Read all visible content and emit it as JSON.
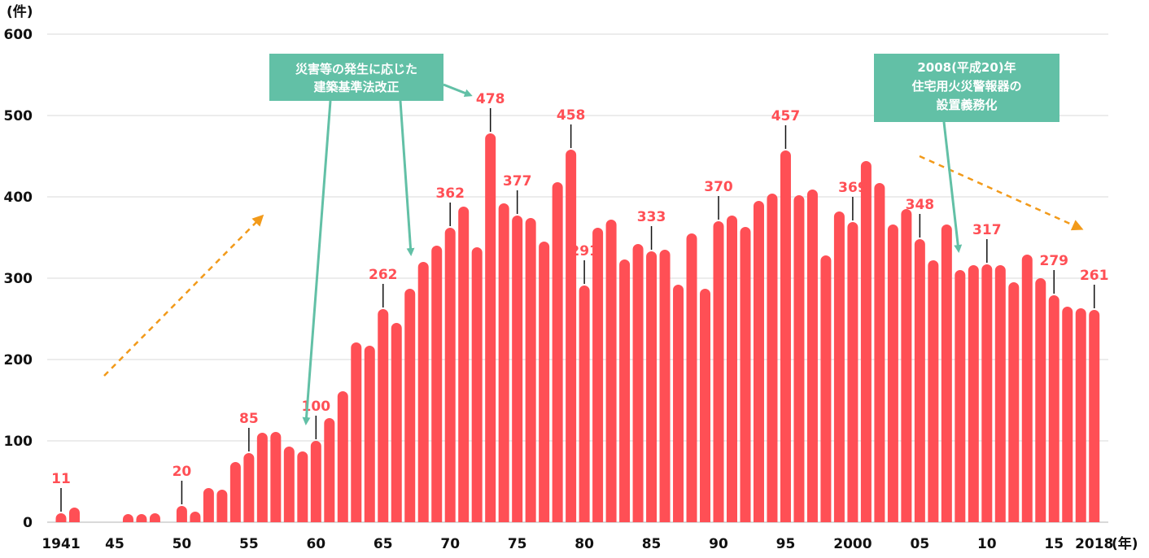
{
  "chart_data": {
    "type": "bar",
    "title": "",
    "ylabel": "(件)",
    "xlabel": "(年)",
    "ylim": [
      0,
      600
    ],
    "yticks": [
      0,
      100,
      200,
      300,
      400,
      500,
      600
    ],
    "ytick_labels": [
      "0",
      "100",
      "200",
      "300",
      "400",
      "500",
      "600"
    ],
    "grid": true,
    "x": [
      1941,
      1942,
      1943,
      1944,
      1945,
      1946,
      1947,
      1948,
      1949,
      1950,
      1951,
      1952,
      1953,
      1954,
      1955,
      1956,
      1957,
      1958,
      1959,
      1960,
      1961,
      1962,
      1963,
      1964,
      1965,
      1966,
      1967,
      1968,
      1969,
      1970,
      1971,
      1972,
      1973,
      1974,
      1975,
      1976,
      1977,
      1978,
      1979,
      1980,
      1981,
      1982,
      1983,
      1984,
      1985,
      1986,
      1987,
      1988,
      1989,
      1990,
      1991,
      1992,
      1993,
      1994,
      1995,
      1996,
      1997,
      1998,
      1999,
      2000,
      2001,
      2002,
      2003,
      2004,
      2005,
      2006,
      2007,
      2008,
      2009,
      2010,
      2011,
      2012,
      2013,
      2014,
      2015,
      2016,
      2017,
      2018
    ],
    "values": [
      11,
      18,
      0,
      0,
      0,
      10,
      10,
      11,
      0,
      20,
      13,
      42,
      40,
      74,
      85,
      110,
      111,
      93,
      87,
      100,
      128,
      161,
      221,
      217,
      262,
      245,
      287,
      320,
      340,
      362,
      388,
      338,
      478,
      392,
      377,
      374,
      345,
      418,
      458,
      291,
      362,
      372,
      323,
      342,
      333,
      335,
      292,
      355,
      287,
      370,
      377,
      363,
      395,
      404,
      457,
      402,
      409,
      328,
      382,
      369,
      444,
      417,
      366,
      385,
      348,
      322,
      366,
      310,
      316,
      317,
      316,
      295,
      329,
      300,
      279,
      265,
      263,
      261
    ],
    "xticks": [
      {
        "year": 1941,
        "label": "1941"
      },
      {
        "year": 1945,
        "label": "45"
      },
      {
        "year": 1950,
        "label": "50"
      },
      {
        "year": 1955,
        "label": "55"
      },
      {
        "year": 1960,
        "label": "60"
      },
      {
        "year": 1965,
        "label": "65"
      },
      {
        "year": 1970,
        "label": "70"
      },
      {
        "year": 1975,
        "label": "75"
      },
      {
        "year": 1980,
        "label": "80"
      },
      {
        "year": 1985,
        "label": "85"
      },
      {
        "year": 1990,
        "label": "90"
      },
      {
        "year": 1995,
        "label": "95"
      },
      {
        "year": 2000,
        "label": "2000"
      },
      {
        "year": 2005,
        "label": "05"
      },
      {
        "year": 2010,
        "label": "10"
      },
      {
        "year": 2015,
        "label": "15"
      },
      {
        "year": 2018,
        "label": "2018"
      }
    ],
    "data_labels": [
      {
        "year": 1941,
        "label": "11"
      },
      {
        "year": 1950,
        "label": "20"
      },
      {
        "year": 1955,
        "label": "85"
      },
      {
        "year": 1960,
        "label": "100"
      },
      {
        "year": 1965,
        "label": "262"
      },
      {
        "year": 1970,
        "label": "362"
      },
      {
        "year": 1973,
        "label": "478"
      },
      {
        "year": 1975,
        "label": "377"
      },
      {
        "year": 1979,
        "label": "458"
      },
      {
        "year": 1980,
        "label": "291"
      },
      {
        "year": 1985,
        "label": "333"
      },
      {
        "year": 1990,
        "label": "370"
      },
      {
        "year": 1995,
        "label": "457"
      },
      {
        "year": 2000,
        "label": "369"
      },
      {
        "year": 2005,
        "label": "348"
      },
      {
        "year": 2010,
        "label": "317"
      },
      {
        "year": 2015,
        "label": "279"
      },
      {
        "year": 2018,
        "label": "261"
      }
    ],
    "annotations": [
      {
        "lines": [
          "災害等の発生に応じた",
          "建築基準法改正"
        ]
      },
      {
        "lines": [
          "2008(平成20)年",
          "住宅用火災警報器の",
          "設置義務化"
        ]
      }
    ],
    "colors": {
      "bar": "#ff4f55",
      "annotation": "#62c0a6",
      "trend": "#f29a1a",
      "grid": "#d9d9d9"
    }
  }
}
